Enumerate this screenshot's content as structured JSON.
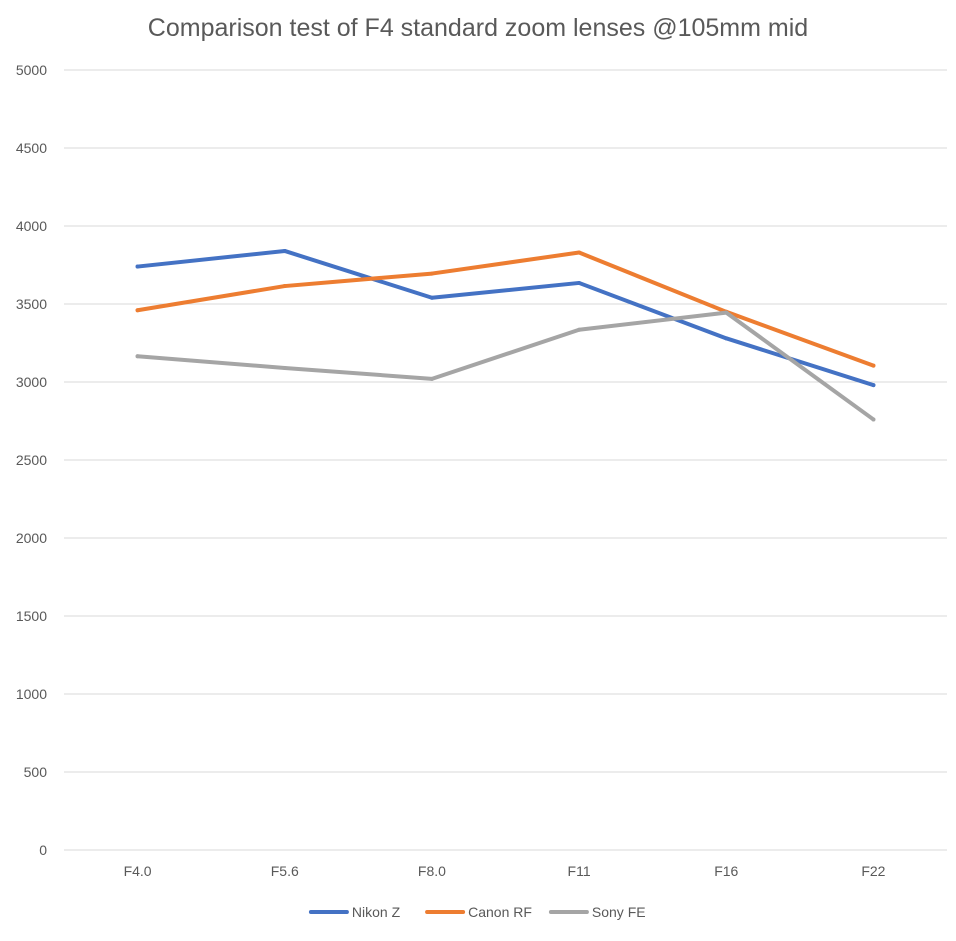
{
  "chart_data": {
    "type": "line",
    "title": "Comparison test of F4 standard zoom lenses @105mm mid",
    "xlabel": "",
    "ylabel": "",
    "categories": [
      "F4.0",
      "F5.6",
      "F8.0",
      "F11",
      "F16",
      "F22"
    ],
    "ylim": [
      0,
      5000
    ],
    "yticks": [
      0,
      500,
      1000,
      1500,
      2000,
      2500,
      3000,
      3500,
      4000,
      4500,
      5000
    ],
    "grid": true,
    "legend_position": "bottom",
    "series": [
      {
        "name": "Nikon Z",
        "color": "#4472C4",
        "values": [
          3740,
          3840,
          3540,
          3635,
          3280,
          2980
        ]
      },
      {
        "name": "Canon RF",
        "color": "#ED7D31",
        "values": [
          3460,
          3615,
          3695,
          3830,
          3450,
          3105
        ]
      },
      {
        "name": "Sony FE",
        "color": "#A5A5A5",
        "values": [
          3165,
          3090,
          3020,
          3335,
          3445,
          2760
        ]
      }
    ]
  }
}
